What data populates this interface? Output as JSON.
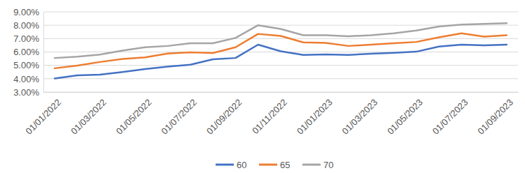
{
  "chart_data": {
    "type": "line",
    "categories": [
      "01/01/2022",
      null,
      "01/03/2022",
      null,
      "01/05/2022",
      null,
      "01/07/2022",
      null,
      "01/09/2022",
      null,
      "01/11/2022",
      null,
      "01/01/2023",
      null,
      "01/03/2023",
      null,
      "01/05/2023",
      null,
      "01/07/2023",
      null,
      "01/09/2023"
    ],
    "series": [
      {
        "name": "60",
        "color": "#4472c4",
        "values": [
          4.02,
          4.25,
          4.3,
          4.5,
          4.72,
          4.9,
          5.05,
          5.45,
          5.55,
          6.55,
          6.05,
          5.78,
          5.82,
          5.78,
          5.87,
          5.93,
          6.02,
          6.4,
          6.55,
          6.5,
          6.55
        ]
      },
      {
        "name": "65",
        "color": "#ed7d31",
        "values": [
          4.78,
          4.98,
          5.25,
          5.48,
          5.6,
          5.88,
          5.97,
          5.92,
          6.35,
          7.35,
          7.2,
          6.72,
          6.68,
          6.45,
          6.55,
          6.65,
          6.75,
          7.1,
          7.4,
          7.15,
          7.25
        ]
      },
      {
        "name": "70",
        "color": "#a5a5a5",
        "values": [
          5.55,
          5.65,
          5.8,
          6.1,
          6.35,
          6.45,
          6.65,
          6.65,
          7.05,
          8.0,
          7.72,
          7.25,
          7.25,
          7.18,
          7.25,
          7.4,
          7.6,
          7.9,
          8.05,
          8.1,
          8.15
        ]
      }
    ],
    "ylim": [
      3,
      9
    ],
    "yticks": [
      {
        "value": 3,
        "label": "3.00%"
      },
      {
        "value": 4,
        "label": "4.00%"
      },
      {
        "value": 5,
        "label": "5.00%"
      },
      {
        "value": 6,
        "label": "6.00%"
      },
      {
        "value": 7,
        "label": "7.00%"
      },
      {
        "value": 8,
        "label": "8.00%"
      },
      {
        "value": 9,
        "label": "9.00%"
      }
    ],
    "grid": true,
    "legend": "bottom"
  }
}
